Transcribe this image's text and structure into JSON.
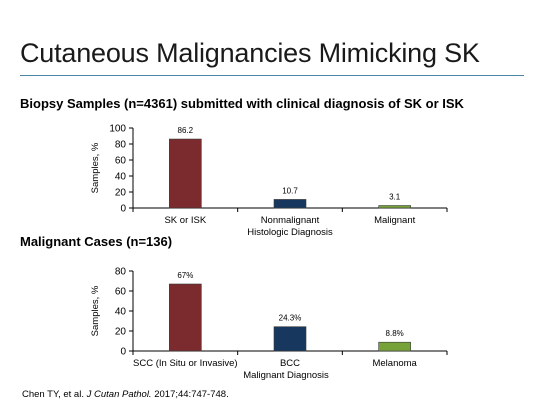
{
  "slide": {
    "title": "Cutaneous Malignancies Mimicking SK"
  },
  "citation": {
    "authors": "Chen TY, et al.",
    "journal": "J Cutan Pathol.",
    "details": "2017;44:747-748."
  },
  "chart_data": [
    {
      "type": "bar",
      "heading": "Biopsy Samples (n=4361) submitted with clinical diagnosis of SK or ISK",
      "xlabel": "Histologic Diagnosis",
      "ylabel": "Samples, %",
      "ylim": [
        0,
        100
      ],
      "yticks": [
        0,
        20,
        40,
        60,
        80,
        100
      ],
      "categories": [
        "SK or ISK",
        "Nonmalignant",
        "Malignant"
      ],
      "values": [
        86.2,
        10.7,
        3.1
      ],
      "data_labels": [
        "86.2",
        "10.7",
        "3.1"
      ],
      "colors": [
        "#7b2a2e",
        "#17375e",
        "#77a23a"
      ],
      "grid": false,
      "legend": "none"
    },
    {
      "type": "bar",
      "heading": "Malignant Cases (n=136)",
      "xlabel": "Malignant Diagnosis",
      "ylabel": "Samples, %",
      "ylim": [
        0,
        80
      ],
      "yticks": [
        0,
        20,
        40,
        60,
        80
      ],
      "categories": [
        "SCC (In Situ or Invasive)",
        "BCC",
        "Melanoma"
      ],
      "values": [
        67,
        24.3,
        8.8
      ],
      "data_labels": [
        "67%",
        "24.3%",
        "8.8%"
      ],
      "colors": [
        "#7b2a2e",
        "#17375e",
        "#77a23a"
      ],
      "grid": false,
      "legend": "none"
    }
  ]
}
